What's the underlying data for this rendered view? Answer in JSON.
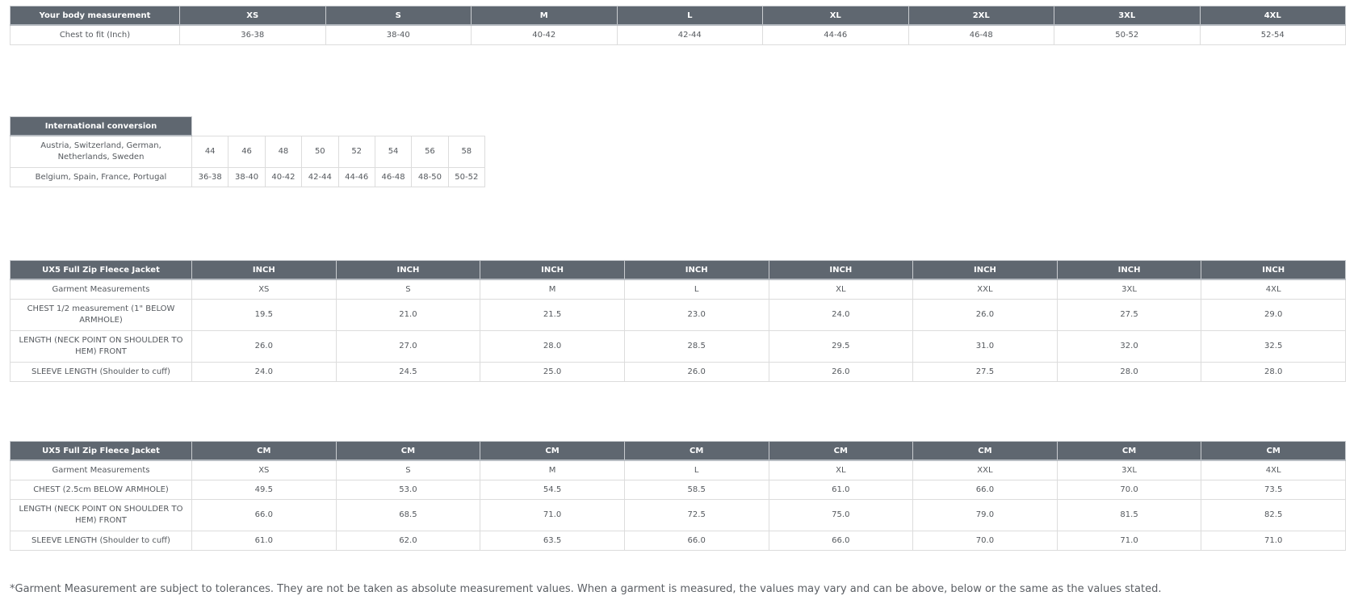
{
  "body_table": {
    "header": [
      "Your body measurement",
      "XS",
      "S",
      "M",
      "L",
      "XL",
      "2XL",
      "3XL",
      "4XL"
    ],
    "rows": [
      [
        "Chest to fit (Inch)",
        "36-38",
        "38-40",
        "40-42",
        "42-44",
        "44-46",
        "46-48",
        "50-52",
        "52-54"
      ]
    ]
  },
  "intl_table": {
    "header": "International conversion",
    "rows": [
      [
        "Austria, Switzerland, German, Netherlands, Sweden",
        "44",
        "46",
        "48",
        "50",
        "52",
        "54",
        "56",
        "58"
      ],
      [
        "Belgium, Spain, France, Portugal",
        "36-38",
        "38-40",
        "40-42",
        "42-44",
        "44-46",
        "46-48",
        "48-50",
        "50-52"
      ]
    ]
  },
  "inch_table": {
    "header": [
      "UX5 Full Zip Fleece Jacket",
      "INCH",
      "INCH",
      "INCH",
      "INCH",
      "INCH",
      "INCH",
      "INCH",
      "INCH"
    ],
    "rows": [
      [
        "Garment Measurements",
        "XS",
        "S",
        "M",
        "L",
        "XL",
        "XXL",
        "3XL",
        "4XL"
      ],
      [
        "CHEST 1/2 measurement (1\" BELOW ARMHOLE)",
        "19.5",
        "21.0",
        "21.5",
        "23.0",
        "24.0",
        "26.0",
        "27.5",
        "29.0"
      ],
      [
        "LENGTH (NECK POINT ON SHOULDER TO HEM) FRONT",
        "26.0",
        "27.0",
        "28.0",
        "28.5",
        "29.5",
        "31.0",
        "32.0",
        "32.5"
      ],
      [
        "SLEEVE LENGTH (Shoulder to cuff)",
        "24.0",
        "24.5",
        "25.0",
        "26.0",
        "26.0",
        "27.5",
        "28.0",
        "28.0"
      ]
    ]
  },
  "cm_table": {
    "header": [
      "UX5 Full Zip Fleece Jacket",
      "CM",
      "CM",
      "CM",
      "CM",
      "CM",
      "CM",
      "CM",
      "CM"
    ],
    "rows": [
      [
        "Garment Measurements",
        "XS",
        "S",
        "M",
        "L",
        "XL",
        "XXL",
        "3XL",
        "4XL"
      ],
      [
        "CHEST (2.5cm BELOW ARMHOLE)",
        "49.5",
        "53.0",
        "54.5",
        "58.5",
        "61.0",
        "66.0",
        "70.0",
        "73.5"
      ],
      [
        "LENGTH (NECK POINT ON SHOULDER TO HEM) FRONT",
        "66.0",
        "68.5",
        "71.0",
        "72.5",
        "75.0",
        "79.0",
        "81.5",
        "82.5"
      ],
      [
        "SLEEVE LENGTH (Shoulder to cuff)",
        "61.0",
        "62.0",
        "63.5",
        "66.0",
        "66.0",
        "70.0",
        "71.0",
        "71.0"
      ]
    ]
  },
  "footnote": "*Garment Measurement are subject to tolerances. They are not be taken as absolute measurement values. When a garment is measured, the values may vary and can be above, below or the same as the values stated.",
  "colors": {
    "header_bg": "#5f6770",
    "header_text": "#ffffff",
    "cell_text": "#55595e",
    "border": "#dcdcdc"
  }
}
